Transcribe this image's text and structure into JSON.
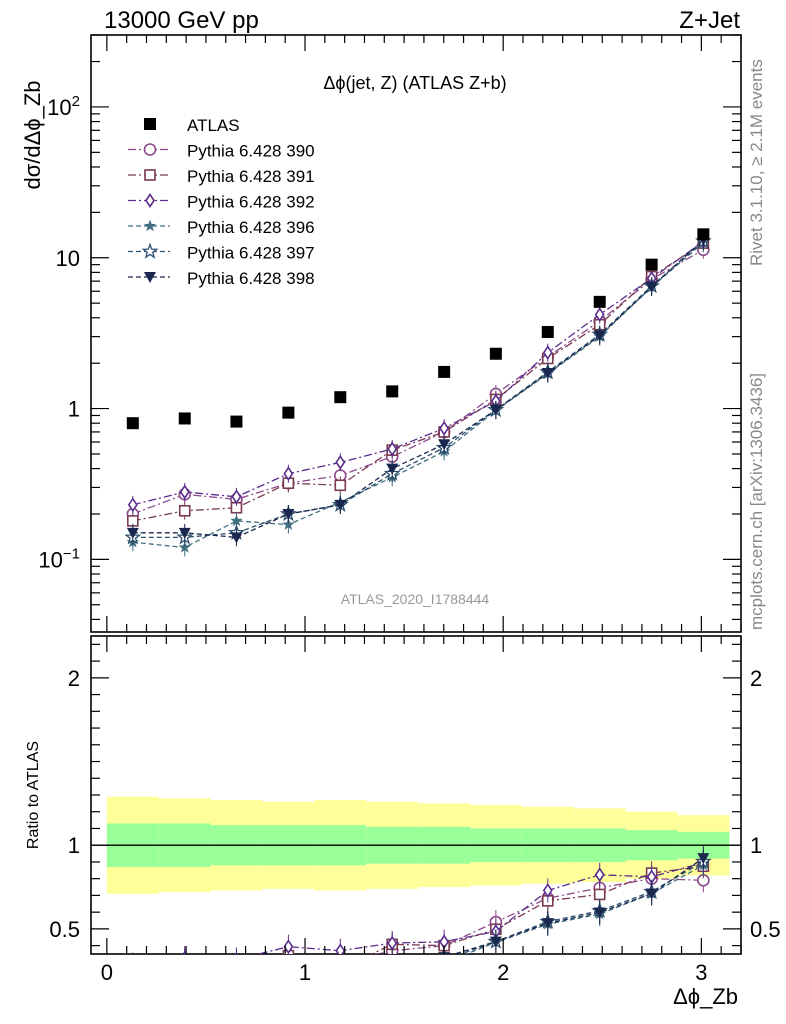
{
  "header": {
    "left": "13000 GeV pp",
    "right": "Z+Jet"
  },
  "side_text": {
    "rivet": "Rivet 3.1.10, ≥ 2.1M events",
    "mcplots": "mcplots.cern.ch [arXiv:1306.3436]"
  },
  "chart_data": {
    "type": "scatter",
    "title": "Δϕ(jet, Z) (ATLAS Z+b)",
    "watermark": "ATLAS_2020_I1788444",
    "ylabel": "dσ/dΔϕ_Zb",
    "xlabel": "Δϕ_Zb",
    "yscale": "log",
    "xlim": [
      -0.08,
      3.2
    ],
    "ylim": [
      0.033,
      300
    ],
    "x": [
      0.131,
      0.393,
      0.654,
      0.916,
      1.178,
      1.44,
      1.702,
      1.963,
      2.225,
      2.487,
      2.749,
      3.01
    ],
    "x_tick_labels": [
      "0",
      "1",
      "2",
      "3"
    ],
    "y_tick_labels": [
      "10^-1",
      "1",
      "10",
      "10^2"
    ],
    "reference": {
      "name": "ATLAS",
      "color": "#000000",
      "values": [
        0.8,
        0.86,
        0.82,
        0.94,
        1.19,
        1.3,
        1.75,
        2.31,
        3.22,
        5.1,
        9.0,
        14.3
      ]
    },
    "series": [
      {
        "name": "Pythia 6.428 390",
        "marker": "circle-open",
        "color": "#8c4a8c",
        "dash": "dashdot",
        "values": [
          0.2,
          0.27,
          0.25,
          0.32,
          0.36,
          0.48,
          0.7,
          1.25,
          2.2,
          3.8,
          7.2,
          11.3
        ]
      },
      {
        "name": "Pythia 6.428 391",
        "marker": "square-open",
        "color": "#7a3a50",
        "dash": "dashdot",
        "values": [
          0.18,
          0.21,
          0.22,
          0.32,
          0.31,
          0.53,
          0.7,
          1.15,
          2.15,
          3.6,
          7.5,
          12.5
        ]
      },
      {
        "name": "Pythia 6.428 392",
        "marker": "diamond-open",
        "color": "#5a2d8c",
        "dash": "dashdot",
        "values": [
          0.23,
          0.28,
          0.26,
          0.37,
          0.44,
          0.54,
          0.74,
          1.12,
          2.35,
          4.2,
          7.3,
          12.8
        ]
      },
      {
        "name": "Pythia 6.428 396",
        "marker": "star-filled",
        "color": "#3f6e7f",
        "dash": "dashed",
        "values": [
          0.13,
          0.12,
          0.18,
          0.17,
          0.24,
          0.35,
          0.52,
          0.97,
          1.7,
          3.0,
          6.4,
          12.6
        ]
      },
      {
        "name": "Pythia 6.428 397",
        "marker": "star-open",
        "color": "#2e4f6e",
        "dash": "dashed",
        "values": [
          0.14,
          0.14,
          0.15,
          0.2,
          0.23,
          0.37,
          0.55,
          0.98,
          1.75,
          3.1,
          6.5,
          12.9
        ]
      },
      {
        "name": "Pythia 6.428 398",
        "marker": "triangle-down-filled",
        "color": "#1a2850",
        "dash": "dashed",
        "values": [
          0.15,
          0.15,
          0.14,
          0.2,
          0.23,
          0.4,
          0.58,
          0.98,
          1.72,
          3.05,
          6.4,
          13.2
        ]
      }
    ],
    "ratio": {
      "ylabel": "Ratio to ATLAS",
      "ylim": [
        0.35,
        2.25
      ],
      "y_tick_labels": [
        "0.5",
        "1",
        "2"
      ],
      "bin_edges": [
        0,
        0.262,
        0.524,
        0.785,
        1.047,
        1.309,
        1.571,
        1.833,
        2.094,
        2.356,
        2.618,
        2.88,
        3.142
      ],
      "band_yellow_half": [
        0.29,
        0.28,
        0.27,
        0.26,
        0.27,
        0.26,
        0.25,
        0.24,
        0.23,
        0.22,
        0.2,
        0.18
      ],
      "band_green_half": [
        0.13,
        0.13,
        0.12,
        0.12,
        0.12,
        0.11,
        0.11,
        0.1,
        0.1,
        0.1,
        0.09,
        0.08
      ]
    }
  }
}
